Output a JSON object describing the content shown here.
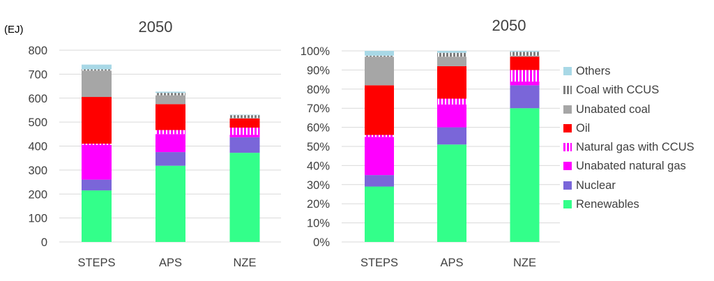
{
  "series": [
    {
      "name": "Renewables",
      "color": "#33ff8a",
      "pattern": "solid"
    },
    {
      "name": "Nuclear",
      "color": "#7a66d9",
      "pattern": "solid"
    },
    {
      "name": "Unabated natural gas",
      "color": "#ff00ff",
      "pattern": "solid"
    },
    {
      "name": "Natural gas with CCUS",
      "color": "#ff00ff",
      "pattern": "hatch"
    },
    {
      "name": "Oil",
      "color": "#ff0000",
      "pattern": "solid"
    },
    {
      "name": "Unabated coal",
      "color": "#a6a6a6",
      "pattern": "solid"
    },
    {
      "name": "Coal with CCUS",
      "color": "#7f7f7f",
      "pattern": "hatch"
    },
    {
      "name": "Others",
      "color": "#a8d8e6",
      "pattern": "solid"
    }
  ],
  "chart_data": [
    {
      "type": "bar",
      "stacked": true,
      "title": "2050",
      "ylabel": "(EJ)",
      "ylim": [
        0,
        800
      ],
      "yticks": [
        "0",
        "100",
        "200",
        "300",
        "400",
        "500",
        "600",
        "700",
        "800"
      ],
      "grid": true,
      "categories": [
        "STEPS",
        "APS",
        "NZE"
      ],
      "series": [
        {
          "name": "Renewables",
          "values": [
            215,
            318,
            372
          ]
        },
        {
          "name": "Nuclear",
          "values": [
            45,
            57,
            65
          ]
        },
        {
          "name": "Unabated natural gas",
          "values": [
            145,
            75,
            10
          ]
        },
        {
          "name": "Natural gas with CCUS",
          "values": [
            5,
            17,
            30
          ]
        },
        {
          "name": "Oil",
          "values": [
            195,
            108,
            38
          ]
        },
        {
          "name": "Unabated coal",
          "values": [
            110,
            37,
            2
          ]
        },
        {
          "name": "Coal with CCUS",
          "values": [
            5,
            10,
            12
          ]
        },
        {
          "name": "Others",
          "values": [
            20,
            5,
            2
          ]
        }
      ]
    },
    {
      "type": "bar",
      "stacked": true,
      "title": "2050",
      "ylabel": "",
      "ylim": [
        0,
        100
      ],
      "yticks": [
        "0%",
        "10%",
        "20%",
        "30%",
        "40%",
        "50%",
        "60%",
        "70%",
        "80%",
        "90%",
        "100%"
      ],
      "grid": true,
      "categories": [
        "STEPS",
        "APS",
        "NZE"
      ],
      "series": [
        {
          "name": "Renewables",
          "values": [
            29,
            51,
            70
          ]
        },
        {
          "name": "Nuclear",
          "values": [
            6,
            9,
            12
          ]
        },
        {
          "name": "Unabated natural gas",
          "values": [
            20,
            12,
            2
          ]
        },
        {
          "name": "Natural gas with CCUS",
          "values": [
            1,
            3,
            6
          ]
        },
        {
          "name": "Oil",
          "values": [
            26,
            17,
            7
          ]
        },
        {
          "name": "Unabated coal",
          "values": [
            15,
            5,
            0.5
          ]
        },
        {
          "name": "Coal with CCUS",
          "values": [
            0.5,
            2,
            2
          ]
        },
        {
          "name": "Others",
          "values": [
            2.5,
            1,
            0.5
          ]
        }
      ]
    }
  ],
  "legend": {
    "placement": "right",
    "items": [
      "Others",
      "Coal with CCUS",
      "Unabated coal",
      "Oil",
      "Natural gas with CCUS",
      "Unabated natural gas",
      "Nuclear",
      "Renewables"
    ]
  }
}
